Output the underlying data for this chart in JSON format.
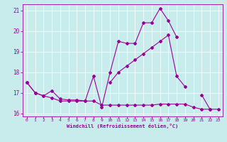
{
  "title": "",
  "xlabel": "Windchill (Refroidissement éolien,°C)",
  "bg_color": "#c8ecec",
  "line_color": "#990099",
  "grid_color": "#ffffff",
  "xlim": [
    -0.5,
    23.5
  ],
  "ylim": [
    15.85,
    21.3
  ],
  "yticks": [
    16,
    17,
    18,
    19,
    20,
    21
  ],
  "xticks": [
    0,
    1,
    2,
    3,
    4,
    5,
    6,
    7,
    8,
    9,
    10,
    11,
    12,
    13,
    14,
    15,
    16,
    17,
    18,
    19,
    20,
    21,
    22,
    23
  ],
  "series": [
    [
      17.5,
      17.0,
      16.85,
      17.1,
      16.7,
      16.65,
      16.65,
      16.6,
      17.8,
      16.3,
      18.0,
      19.5,
      19.4,
      19.4,
      20.4,
      20.4,
      21.1,
      20.5,
      19.7,
      null,
      null,
      null,
      null,
      null
    ],
    [
      17.5,
      17.0,
      16.85,
      16.75,
      16.6,
      16.6,
      16.6,
      16.6,
      16.6,
      16.4,
      16.4,
      16.4,
      16.4,
      16.4,
      16.4,
      16.4,
      16.45,
      16.45,
      16.45,
      16.45,
      16.3,
      16.2,
      16.2,
      16.2
    ],
    [
      null,
      null,
      null,
      null,
      null,
      null,
      null,
      null,
      null,
      null,
      17.5,
      18.0,
      18.3,
      18.6,
      18.9,
      19.2,
      19.5,
      19.8,
      17.8,
      17.3,
      null,
      null,
      null,
      null
    ],
    [
      null,
      null,
      null,
      null,
      null,
      null,
      null,
      null,
      null,
      null,
      null,
      null,
      null,
      null,
      null,
      null,
      null,
      null,
      null,
      null,
      null,
      16.9,
      16.2,
      null
    ]
  ]
}
